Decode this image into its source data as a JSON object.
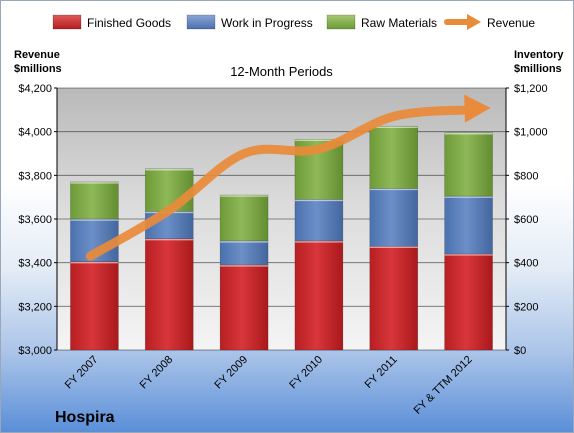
{
  "chart_data": {
    "type": "bar",
    "subtype": "stacked-bar-with-line",
    "title": "12-Month Periods",
    "brand": "Hospira",
    "categories": [
      "FY 2007",
      "FY 2008",
      "FY 2009",
      "FY 2010",
      "FY 2011",
      "FY & TTM 2012"
    ],
    "series": [
      {
        "name": "Finished Goods",
        "axis": "right",
        "color": "#c0282a",
        "values": [
          405,
          510,
          390,
          500,
          475,
          440
        ]
      },
      {
        "name": "Work in Progress",
        "axis": "right",
        "color": "#4f76b5",
        "values": [
          195,
          125,
          110,
          190,
          265,
          265
        ]
      },
      {
        "name": "Raw Materials",
        "axis": "right",
        "color": "#75a23d",
        "values": [
          170,
          195,
          210,
          275,
          285,
          290
        ]
      },
      {
        "name": "Revenue",
        "axis": "left",
        "type": "line",
        "color": "#e98b3a",
        "values": [
          3430,
          3640,
          3900,
          3920,
          4070,
          4100
        ]
      }
    ],
    "left_axis": {
      "title": "Revenue\n$millions",
      "ylim": [
        3000,
        4200
      ],
      "ticks": [
        "$3,000",
        "$3,200",
        "$3,400",
        "$3,600",
        "$3,800",
        "$4,000",
        "$4,200"
      ]
    },
    "right_axis": {
      "title": "Inventory\n$millions",
      "ylim": [
        0,
        1200
      ],
      "ticks": [
        "$0",
        "$200",
        "$400",
        "$600",
        "$800",
        "$1,000",
        "$1,200"
      ]
    },
    "legend_position": "top",
    "grid": true
  }
}
